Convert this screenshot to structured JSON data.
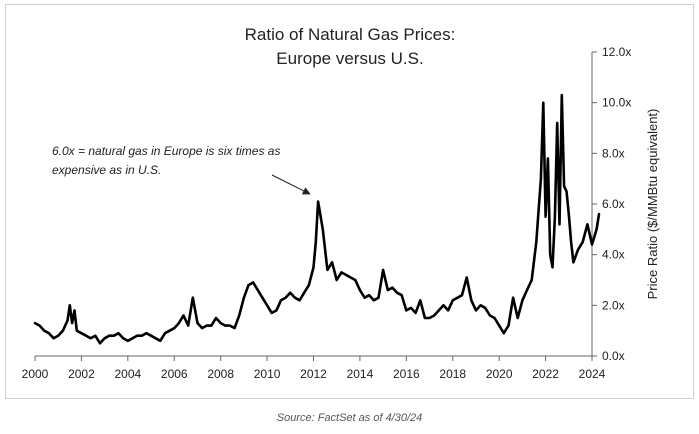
{
  "chart_data": {
    "type": "line",
    "title": [
      "Ratio of Natural Gas Prices:",
      "Europe versus U.S."
    ],
    "ylabel": "Price Ratio ($/MMBtu equivalent)",
    "xlabel": "",
    "xlim": [
      2000,
      2024
    ],
    "ylim": [
      0,
      12
    ],
    "xticks": [
      2000,
      2002,
      2004,
      2006,
      2008,
      2010,
      2012,
      2014,
      2016,
      2018,
      2020,
      2022,
      2024
    ],
    "xtick_labels": [
      "2000",
      "2002",
      "2004",
      "2006",
      "2008",
      "2010",
      "2012",
      "2014",
      "2016",
      "2018",
      "2020",
      "2022",
      "2024"
    ],
    "yticks": [
      0,
      2,
      4,
      6,
      8,
      10,
      12
    ],
    "ytick_labels": [
      "0.0x",
      "2.0x",
      "4.0x",
      "6.0x",
      "8.0x",
      "10.0x",
      "12.0x"
    ],
    "y_axis_position": "right",
    "grid": false,
    "legend": "none",
    "annotation": {
      "text": [
        "6.0x = natural gas in Europe is six times as",
        "expensive as in U.S."
      ],
      "arrow_to": [
        2012.1,
        6.2
      ]
    },
    "series": [
      {
        "name": "",
        "color": "#000000",
        "x": [
          2000.0,
          2000.2,
          2000.4,
          2000.6,
          2000.8,
          2001.0,
          2001.2,
          2001.4,
          2001.5,
          2001.6,
          2001.7,
          2001.8,
          2002.0,
          2002.2,
          2002.4,
          2002.6,
          2002.8,
          2003.0,
          2003.2,
          2003.4,
          2003.6,
          2003.8,
          2004.0,
          2004.2,
          2004.4,
          2004.6,
          2004.8,
          2005.0,
          2005.2,
          2005.4,
          2005.6,
          2005.8,
          2006.0,
          2006.2,
          2006.4,
          2006.6,
          2006.8,
          2007.0,
          2007.2,
          2007.4,
          2007.6,
          2007.8,
          2008.0,
          2008.2,
          2008.4,
          2008.6,
          2008.8,
          2009.0,
          2009.2,
          2009.4,
          2009.6,
          2009.8,
          2010.0,
          2010.2,
          2010.4,
          2010.6,
          2010.8,
          2011.0,
          2011.2,
          2011.4,
          2011.6,
          2011.8,
          2012.0,
          2012.1,
          2012.2,
          2012.4,
          2012.6,
          2012.8,
          2013.0,
          2013.2,
          2013.4,
          2013.6,
          2013.8,
          2014.0,
          2014.2,
          2014.4,
          2014.6,
          2014.8,
          2015.0,
          2015.2,
          2015.4,
          2015.6,
          2015.8,
          2016.0,
          2016.2,
          2016.4,
          2016.6,
          2016.8,
          2017.0,
          2017.2,
          2017.4,
          2017.6,
          2017.8,
          2018.0,
          2018.2,
          2018.4,
          2018.6,
          2018.8,
          2019.0,
          2019.2,
          2019.4,
          2019.6,
          2019.8,
          2020.0,
          2020.2,
          2020.4,
          2020.6,
          2020.8,
          2021.0,
          2021.2,
          2021.4,
          2021.6,
          2021.8,
          2021.9,
          2022.0,
          2022.1,
          2022.2,
          2022.3,
          2022.4,
          2022.5,
          2022.6,
          2022.7,
          2022.8,
          2022.9,
          2023.0,
          2023.1,
          2023.2,
          2023.4,
          2023.6,
          2023.8,
          2024.0,
          2024.2,
          2024.3
        ],
        "y": [
          1.3,
          1.2,
          1.0,
          0.9,
          0.7,
          0.8,
          1.0,
          1.4,
          2.0,
          1.3,
          1.8,
          1.0,
          0.9,
          0.8,
          0.7,
          0.8,
          0.5,
          0.7,
          0.8,
          0.8,
          0.9,
          0.7,
          0.6,
          0.7,
          0.8,
          0.8,
          0.9,
          0.8,
          0.7,
          0.6,
          0.9,
          1.0,
          1.1,
          1.3,
          1.6,
          1.2,
          2.3,
          1.3,
          1.1,
          1.2,
          1.2,
          1.5,
          1.3,
          1.2,
          1.2,
          1.1,
          1.6,
          2.3,
          2.8,
          2.9,
          2.6,
          2.3,
          2.0,
          1.7,
          1.8,
          2.2,
          2.3,
          2.5,
          2.3,
          2.2,
          2.5,
          2.8,
          3.5,
          4.5,
          6.1,
          5.0,
          3.4,
          3.7,
          3.0,
          3.3,
          3.2,
          3.1,
          3.0,
          2.6,
          2.3,
          2.4,
          2.2,
          2.3,
          3.4,
          2.6,
          2.7,
          2.5,
          2.4,
          1.8,
          1.9,
          1.7,
          2.2,
          1.5,
          1.5,
          1.6,
          1.8,
          2.0,
          1.8,
          2.2,
          2.3,
          2.4,
          3.1,
          2.2,
          1.8,
          2.0,
          1.9,
          1.6,
          1.5,
          1.2,
          0.9,
          1.2,
          2.3,
          1.5,
          2.2,
          2.6,
          3.0,
          4.5,
          7.0,
          10.0,
          5.5,
          7.8,
          4.0,
          3.5,
          5.5,
          9.2,
          5.2,
          10.3,
          6.7,
          6.5,
          5.6,
          4.5,
          3.7,
          4.2,
          4.5,
          5.2,
          4.4,
          5.0,
          5.6
        ]
      }
    ]
  },
  "source_note": "Source: FactSet as of 4/30/24"
}
